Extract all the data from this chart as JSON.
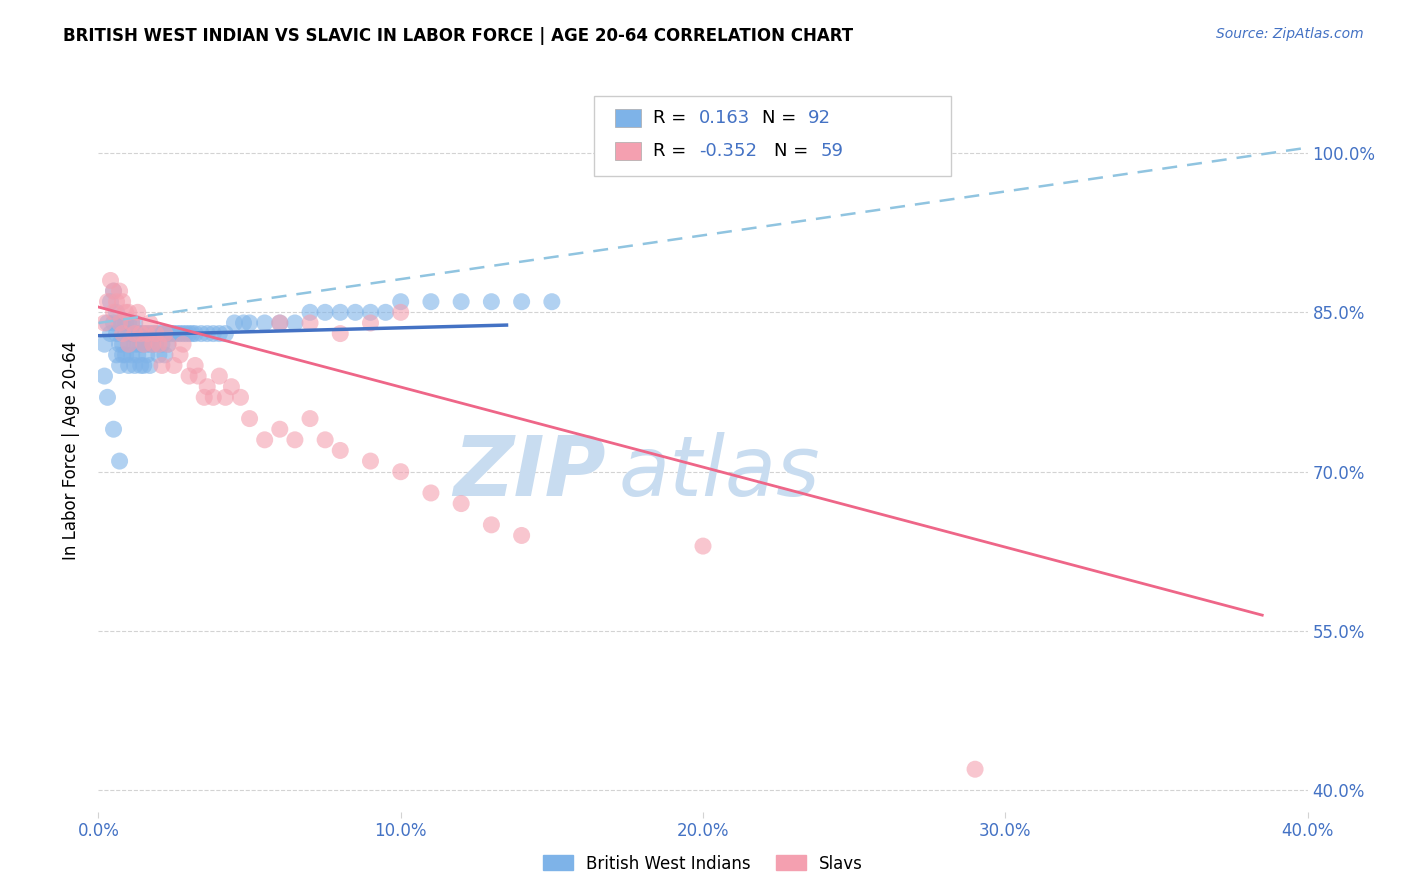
{
  "title": "BRITISH WEST INDIAN VS SLAVIC IN LABOR FORCE | AGE 20-64 CORRELATION CHART",
  "source": "Source: ZipAtlas.com",
  "ylabel": "In Labor Force | Age 20-64",
  "xlim": [
    0.0,
    0.4
  ],
  "ylim": [
    0.38,
    1.06
  ],
  "xtick_labels": [
    "0.0%",
    "10.0%",
    "20.0%",
    "30.0%",
    "40.0%"
  ],
  "xtick_vals": [
    0.0,
    0.1,
    0.2,
    0.3,
    0.4
  ],
  "ytick_labels": [
    "100.0%",
    "85.0%",
    "70.0%",
    "55.0%",
    "40.0%"
  ],
  "ytick_vals": [
    1.0,
    0.85,
    0.7,
    0.55,
    0.4
  ],
  "blue_R": 0.163,
  "blue_N": 92,
  "pink_R": -0.352,
  "pink_N": 59,
  "blue_color": "#7EB3E8",
  "pink_color": "#F4A0B0",
  "blue_line_color": "#4472C4",
  "pink_line_color": "#EE6688",
  "dashed_line_color": "#90C4E0",
  "watermark_zip": "ZIP",
  "watermark_atlas": "atlas",
  "watermark_color": "#C8DCF0",
  "legend_label_blue": "British West Indians",
  "legend_label_pink": "Slavs",
  "blue_scatter_x": [
    0.002,
    0.003,
    0.004,
    0.004,
    0.005,
    0.005,
    0.006,
    0.006,
    0.006,
    0.007,
    0.007,
    0.007,
    0.008,
    0.008,
    0.008,
    0.009,
    0.009,
    0.009,
    0.01,
    0.01,
    0.01,
    0.01,
    0.011,
    0.011,
    0.011,
    0.012,
    0.012,
    0.012,
    0.012,
    0.013,
    0.013,
    0.013,
    0.014,
    0.014,
    0.014,
    0.015,
    0.015,
    0.015,
    0.016,
    0.016,
    0.016,
    0.017,
    0.017,
    0.017,
    0.018,
    0.018,
    0.019,
    0.019,
    0.02,
    0.02,
    0.021,
    0.021,
    0.022,
    0.022,
    0.023,
    0.023,
    0.024,
    0.025,
    0.026,
    0.027,
    0.028,
    0.029,
    0.03,
    0.031,
    0.032,
    0.034,
    0.036,
    0.038,
    0.04,
    0.042,
    0.045,
    0.048,
    0.05,
    0.055,
    0.06,
    0.065,
    0.07,
    0.075,
    0.08,
    0.085,
    0.09,
    0.095,
    0.1,
    0.11,
    0.12,
    0.13,
    0.14,
    0.15,
    0.002,
    0.003,
    0.005,
    0.007
  ],
  "blue_scatter_y": [
    0.82,
    0.84,
    0.86,
    0.83,
    0.87,
    0.84,
    0.85,
    0.83,
    0.81,
    0.84,
    0.82,
    0.8,
    0.84,
    0.82,
    0.81,
    0.84,
    0.83,
    0.81,
    0.84,
    0.83,
    0.82,
    0.8,
    0.84,
    0.83,
    0.81,
    0.84,
    0.83,
    0.82,
    0.8,
    0.83,
    0.82,
    0.81,
    0.83,
    0.82,
    0.8,
    0.83,
    0.82,
    0.8,
    0.83,
    0.82,
    0.81,
    0.83,
    0.82,
    0.8,
    0.83,
    0.82,
    0.83,
    0.82,
    0.83,
    0.81,
    0.83,
    0.82,
    0.83,
    0.81,
    0.83,
    0.82,
    0.83,
    0.83,
    0.83,
    0.83,
    0.83,
    0.83,
    0.83,
    0.83,
    0.83,
    0.83,
    0.83,
    0.83,
    0.83,
    0.83,
    0.84,
    0.84,
    0.84,
    0.84,
    0.84,
    0.84,
    0.85,
    0.85,
    0.85,
    0.85,
    0.85,
    0.85,
    0.86,
    0.86,
    0.86,
    0.86,
    0.86,
    0.86,
    0.79,
    0.77,
    0.74,
    0.71
  ],
  "pink_scatter_x": [
    0.002,
    0.003,
    0.004,
    0.005,
    0.005,
    0.006,
    0.007,
    0.007,
    0.008,
    0.008,
    0.009,
    0.01,
    0.01,
    0.011,
    0.012,
    0.013,
    0.014,
    0.015,
    0.016,
    0.017,
    0.018,
    0.019,
    0.02,
    0.021,
    0.022,
    0.023,
    0.025,
    0.027,
    0.028,
    0.03,
    0.032,
    0.033,
    0.035,
    0.036,
    0.038,
    0.04,
    0.042,
    0.044,
    0.047,
    0.05,
    0.055,
    0.06,
    0.065,
    0.07,
    0.075,
    0.08,
    0.09,
    0.1,
    0.11,
    0.12,
    0.13,
    0.14,
    0.06,
    0.07,
    0.08,
    0.09,
    0.1,
    0.2,
    0.29
  ],
  "pink_scatter_y": [
    0.84,
    0.86,
    0.88,
    0.87,
    0.85,
    0.86,
    0.87,
    0.84,
    0.86,
    0.83,
    0.85,
    0.85,
    0.82,
    0.84,
    0.83,
    0.85,
    0.83,
    0.82,
    0.83,
    0.84,
    0.82,
    0.83,
    0.82,
    0.8,
    0.83,
    0.82,
    0.8,
    0.81,
    0.82,
    0.79,
    0.8,
    0.79,
    0.77,
    0.78,
    0.77,
    0.79,
    0.77,
    0.78,
    0.77,
    0.75,
    0.73,
    0.74,
    0.73,
    0.75,
    0.73,
    0.72,
    0.71,
    0.7,
    0.68,
    0.67,
    0.65,
    0.64,
    0.84,
    0.84,
    0.83,
    0.84,
    0.85,
    0.63,
    0.42
  ],
  "blue_trendline_x": [
    0.0,
    0.135
  ],
  "blue_trendline_y": [
    0.828,
    0.838
  ],
  "pink_trendline_x": [
    0.0,
    0.385
  ],
  "pink_trendline_y": [
    0.855,
    0.565
  ],
  "dashed_trendline_x": [
    0.0,
    0.4
  ],
  "dashed_trendline_y": [
    0.84,
    1.005
  ]
}
